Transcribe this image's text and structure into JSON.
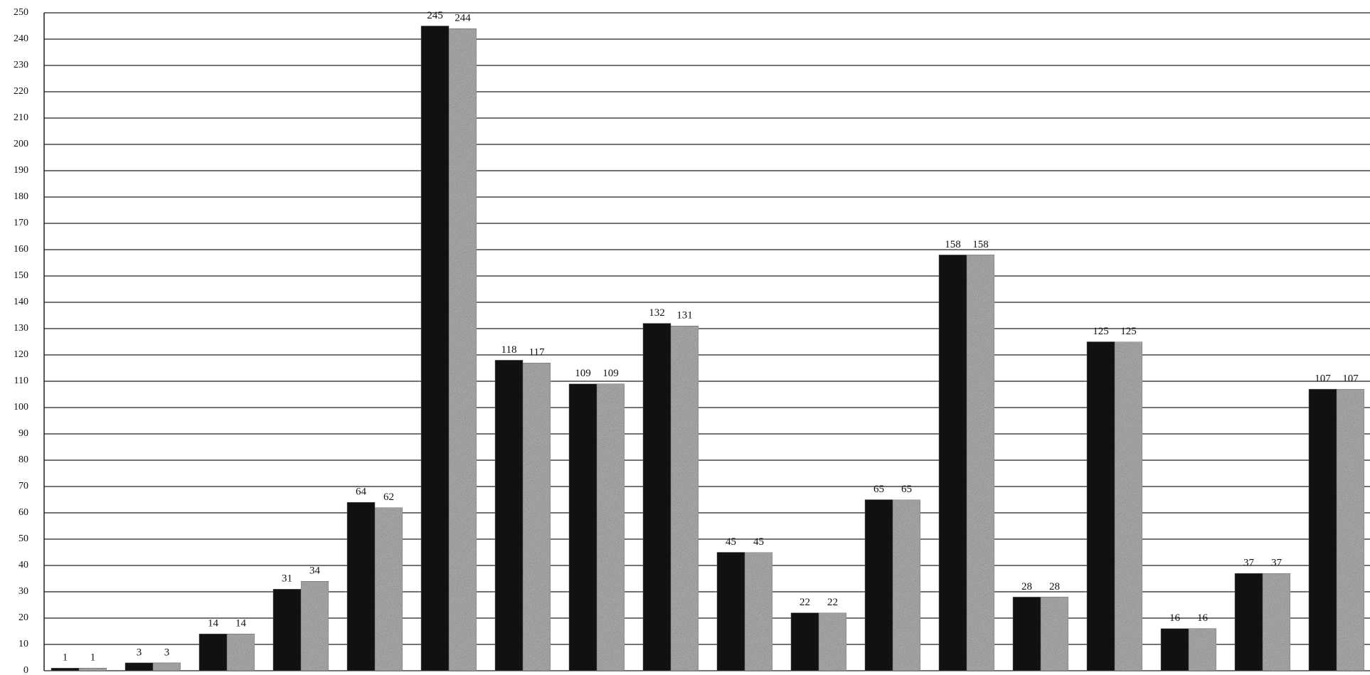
{
  "chart_data": {
    "type": "bar",
    "categories": [
      null,
      null,
      null,
      null,
      null,
      null,
      null,
      null,
      null,
      null,
      null,
      null,
      null,
      null,
      null,
      null,
      null,
      null
    ],
    "series": [
      {
        "color": "#111111",
        "values": [
          1,
          3,
          14,
          31,
          64,
          245,
          118,
          109,
          132,
          45,
          22,
          65,
          158,
          28,
          125,
          16,
          37,
          107
        ]
      },
      {
        "color": "#b5b5b5",
        "values": [
          1,
          3,
          14,
          34,
          62,
          244,
          117,
          109,
          131,
          45,
          22,
          65,
          158,
          28,
          125,
          16,
          37,
          107
        ]
      }
    ],
    "ylim": [
      0,
      250
    ],
    "yticks": [
      0,
      10,
      20,
      30,
      40,
      50,
      60,
      70,
      80,
      90,
      100,
      110,
      120,
      130,
      140,
      150,
      160,
      170,
      180,
      190,
      200,
      210,
      220,
      230,
      240,
      250
    ],
    "grid": true
  }
}
